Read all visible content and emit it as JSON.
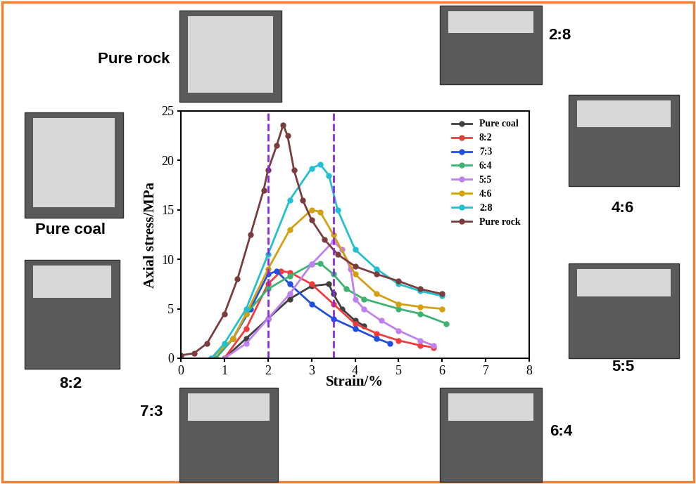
{
  "chart_data": {
    "type": "line",
    "x_label": "Strain/%",
    "y_label": "Axial stress/MPa",
    "xlim": [
      0,
      8
    ],
    "ylim": [
      0,
      25
    ],
    "xticks": [
      0,
      1,
      2,
      3,
      4,
      5,
      6,
      7,
      8
    ],
    "yticks": [
      0,
      5,
      10,
      15,
      20,
      25
    ],
    "grid": false,
    "legend": "upper right",
    "marker": "o",
    "line_style": "solid",
    "vlines": {
      "x": [
        2,
        3.5
      ],
      "color": "#8a2be2",
      "line_style": "dashed"
    },
    "annotations": [
      "Pure rock",
      "2:8",
      "Pure coal",
      "4:6",
      "8:2",
      "5:5",
      "7:3",
      "6:4"
    ],
    "series": [
      {
        "name": "Pure coal",
        "color": "#404040",
        "x": [
          1.0,
          1.5,
          2.0,
          2.5,
          3.0,
          3.4,
          3.5,
          3.7,
          4.0,
          4.2
        ],
        "values": [
          0,
          2,
          4,
          6,
          7.3,
          7.5,
          6.5,
          5,
          3.8,
          3.3
        ]
      },
      {
        "name": "8:2",
        "color": "#f03c3c",
        "x": [
          1.0,
          1.5,
          2.0,
          2.3,
          2.5,
          3.0,
          3.5,
          4.0,
          4.5,
          5.0,
          5.5,
          5.8
        ],
        "values": [
          0,
          3,
          7.5,
          8.8,
          8.7,
          7.5,
          5.5,
          3.5,
          2.5,
          1.8,
          1.3,
          1.1
        ]
      },
      {
        "name": "7:3",
        "color": "#1f4fe0",
        "x": [
          0.8,
          1.2,
          1.6,
          2.0,
          2.2,
          2.5,
          3.0,
          3.5,
          4.0,
          4.5,
          4.8
        ],
        "values": [
          0,
          2,
          5,
          8.5,
          8.8,
          7.5,
          5.5,
          4,
          3,
          2,
          1.5
        ]
      },
      {
        "name": "6:4",
        "color": "#3cb371",
        "x": [
          0.8,
          1.2,
          1.5,
          2.0,
          2.5,
          3.0,
          3.2,
          3.5,
          3.8,
          4.2,
          5.0,
          5.5,
          6.1
        ],
        "values": [
          0,
          2,
          4.5,
          7,
          8.3,
          9.5,
          9.6,
          8.5,
          7,
          6,
          5,
          4.5,
          3.5
        ]
      },
      {
        "name": "5:5",
        "color": "#c080f0",
        "x": [
          1.0,
          1.5,
          2.0,
          2.5,
          3.0,
          3.5,
          3.7,
          3.9,
          4.0,
          4.2,
          4.6,
          5.0,
          5.5,
          5.8
        ],
        "values": [
          0,
          1.5,
          4,
          6.5,
          9.5,
          11.8,
          11,
          9,
          6,
          5,
          3.8,
          2.8,
          1.8,
          1.3
        ]
      },
      {
        "name": "4:6",
        "color": "#d4a010",
        "x": [
          0.7,
          1.2,
          1.5,
          2.0,
          2.5,
          3.0,
          3.2,
          3.5,
          4.0,
          4.5,
          5.0,
          5.5,
          6.0
        ],
        "values": [
          0,
          2,
          4.5,
          9,
          13,
          15,
          14.8,
          12.5,
          8.5,
          6.5,
          5.5,
          5.2,
          5
        ]
      },
      {
        "name": "2:8",
        "color": "#20c0d0",
        "x": [
          0.7,
          1.0,
          1.5,
          2.0,
          2.5,
          3.0,
          3.2,
          3.4,
          3.6,
          4.0,
          4.5,
          5.0,
          5.5,
          6.0
        ],
        "values": [
          0,
          1.5,
          5,
          10.5,
          16,
          19.2,
          19.6,
          18.5,
          15,
          11,
          9,
          7.5,
          6.8,
          6.3
        ]
      },
      {
        "name": "Pure rock",
        "color": "#7a3c3c",
        "x": [
          0,
          0.3,
          0.6,
          1.0,
          1.3,
          1.6,
          1.9,
          2.0,
          2.2,
          2.35,
          2.45,
          2.6,
          2.8,
          3.0,
          3.3,
          3.6,
          4.0,
          4.5,
          5.0,
          5.5,
          6.0
        ],
        "values": [
          0.3,
          0.5,
          1.5,
          4.5,
          8,
          12.5,
          17,
          19,
          21.5,
          23.6,
          22.5,
          19,
          16,
          14,
          12,
          10.5,
          9.3,
          8.5,
          7.8,
          7,
          6.5
        ]
      }
    ]
  }
}
